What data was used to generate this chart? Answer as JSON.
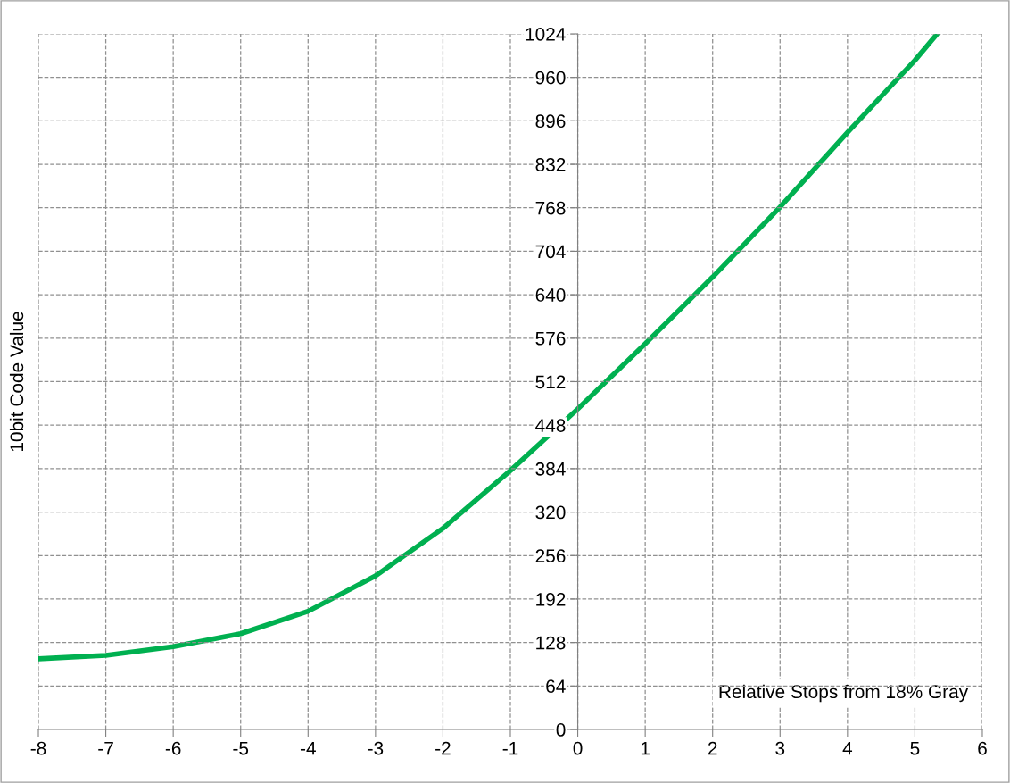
{
  "chart_data": {
    "type": "line",
    "xlabel": "Relative Stops from 18% Gray",
    "ylabel": "10bit Code Value",
    "x": [
      -8,
      -7,
      -6,
      -5,
      -4,
      -3,
      -2,
      -1,
      0,
      1,
      2,
      3,
      4,
      5,
      5.33
    ],
    "series": [
      {
        "color": "#00b050",
        "values": [
          104,
          109,
          122,
          141,
          174,
          226,
          296,
          381,
          472,
          568,
          666,
          769,
          879,
          985,
          1024
        ]
      }
    ],
    "xlim": [
      -8,
      6
    ],
    "xticks": [
      -8,
      -7,
      -6,
      -5,
      -4,
      -3,
      -2,
      -1,
      0,
      1,
      2,
      3,
      4,
      5,
      6
    ],
    "ylim": [
      0,
      1024
    ],
    "yticks": [
      0,
      64,
      128,
      192,
      256,
      320,
      384,
      448,
      512,
      576,
      640,
      704,
      768,
      832,
      896,
      960,
      1024
    ],
    "grid": true,
    "marker": "none",
    "line_style": "solid",
    "legend": false
  }
}
